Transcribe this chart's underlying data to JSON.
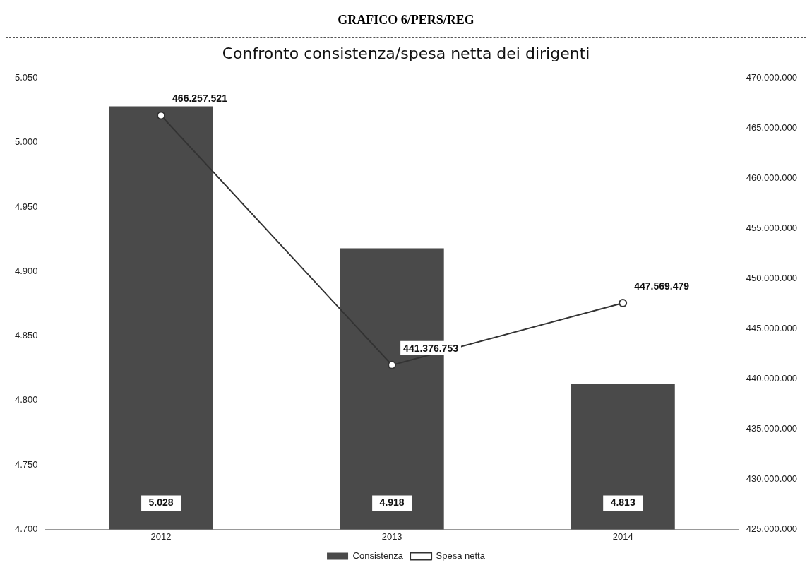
{
  "chart_data": {
    "type": "bar",
    "title": "GRAFICO 6/PERS/REG",
    "subtitle": "Confronto consistenza/spesa netta dei dirigenti",
    "categories": [
      "2012",
      "2013",
      "2014"
    ],
    "series": [
      {
        "name": "Consistenza",
        "color": "#4a4a4a",
        "values": [
          5028,
          4918,
          4813
        ],
        "value_labels": [
          "5.028",
          "4.918",
          "4.813"
        ]
      },
      {
        "name": "Spesa netta",
        "type": "line",
        "axis": "y2",
        "color": "#333333",
        "values": [
          466257521,
          441376753,
          447569479
        ],
        "value_labels": [
          "466.257.521",
          "441.376.753",
          "447.569.479"
        ]
      }
    ],
    "ylim": [
      4700,
      5050
    ],
    "yticks": [
      {
        "value": 4700,
        "label": "4.700"
      },
      {
        "value": 4750,
        "label": "4.750"
      },
      {
        "value": 4800,
        "label": "4.800"
      },
      {
        "value": 4850,
        "label": "4.850"
      },
      {
        "value": 4900,
        "label": "4.900"
      },
      {
        "value": 4950,
        "label": "4.950"
      },
      {
        "value": 5000,
        "label": "5.000"
      },
      {
        "value": 5050,
        "label": "5.050"
      }
    ],
    "y2lim": [
      425000000,
      470000000
    ],
    "y2ticks": [
      {
        "value": 425000000,
        "label": "425.000.000"
      },
      {
        "value": 430000000,
        "label": "430.000.000"
      },
      {
        "value": 435000000,
        "label": "435.000.000"
      },
      {
        "value": 440000000,
        "label": "440.000.000"
      },
      {
        "value": 445000000,
        "label": "445.000.000"
      },
      {
        "value": 450000000,
        "label": "450.000.000"
      },
      {
        "value": 455000000,
        "label": "455.000.000"
      },
      {
        "value": 460000000,
        "label": "460.000.000"
      },
      {
        "value": 465000000,
        "label": "465.000.000"
      },
      {
        "value": 470000000,
        "label": "470.000.000"
      }
    ],
    "legend": "bottom",
    "marker": "circle",
    "line_style": "solid"
  }
}
